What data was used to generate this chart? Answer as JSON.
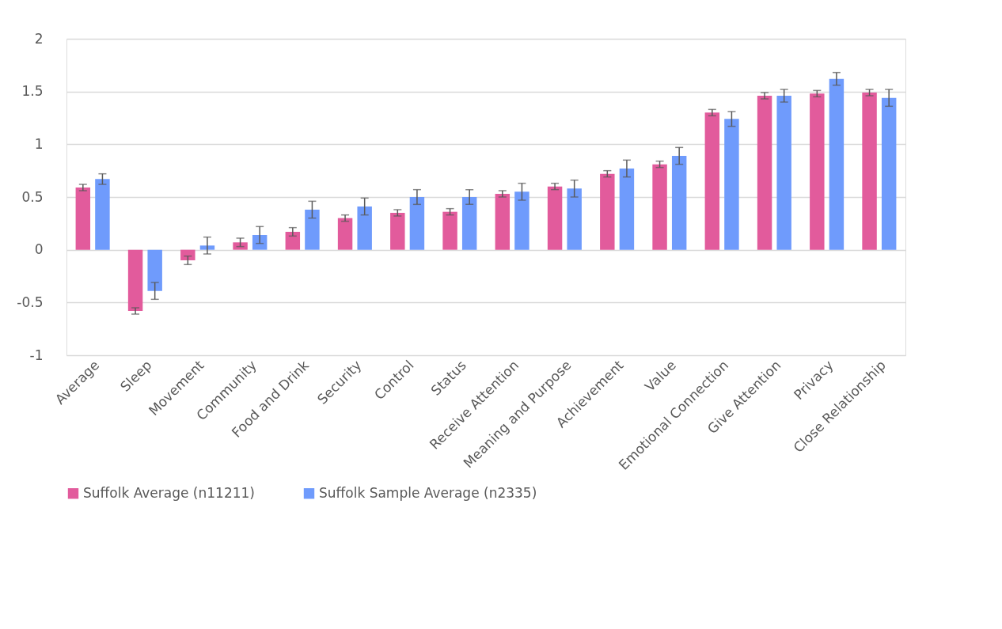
{
  "chart_data": {
    "type": "bar",
    "categories": [
      "Average",
      "Sleep",
      "Movement",
      "Community",
      "Food and Drink",
      "Security",
      "Control",
      "Status",
      "Receive Attention",
      "Meaning and Purpose",
      "Achievement",
      "Value",
      "Emotional Connection",
      "Give Attention",
      "Privacy",
      "Close Relationship"
    ],
    "series": [
      {
        "name": "Suffolk Average (n11211)",
        "color": "#e25b9c",
        "values": [
          0.59,
          -0.58,
          -0.1,
          0.07,
          0.17,
          0.3,
          0.35,
          0.36,
          0.53,
          0.6,
          0.72,
          0.81,
          1.3,
          1.46,
          1.48,
          1.49
        ],
        "errors": [
          0.03,
          0.03,
          0.04,
          0.04,
          0.04,
          0.03,
          0.03,
          0.03,
          0.03,
          0.03,
          0.03,
          0.03,
          0.03,
          0.03,
          0.03,
          0.03
        ]
      },
      {
        "name": "Suffolk Sample Average   (n2335)",
        "color": "#6f9bfc",
        "values": [
          0.67,
          -0.39,
          0.04,
          0.14,
          0.38,
          0.41,
          0.5,
          0.5,
          0.55,
          0.58,
          0.77,
          0.89,
          1.24,
          1.46,
          1.62,
          1.44
        ],
        "errors": [
          0.05,
          0.08,
          0.08,
          0.08,
          0.08,
          0.08,
          0.07,
          0.07,
          0.08,
          0.08,
          0.08,
          0.08,
          0.07,
          0.06,
          0.06,
          0.08
        ]
      }
    ],
    "ylim": [
      -1,
      2
    ],
    "yticks": [
      -1,
      -0.5,
      0,
      0.5,
      1,
      1.5,
      2
    ],
    "grid": "y",
    "legend": "bottom"
  }
}
